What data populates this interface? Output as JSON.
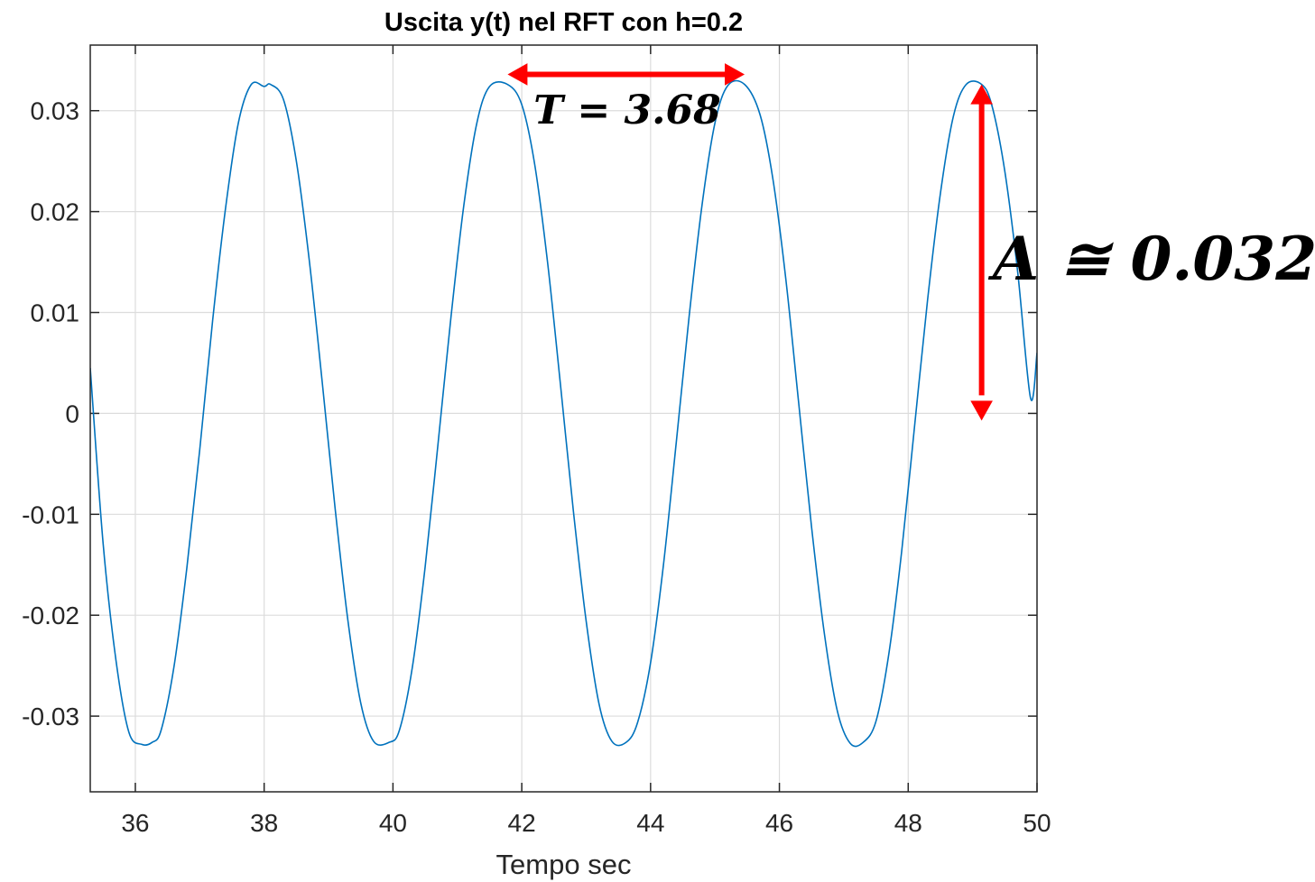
{
  "chart_data": {
    "type": "line",
    "title": "Uscita y(t) nel RFT con h=0.2",
    "xlabel": "Tempo sec",
    "ylabel": "",
    "xlim": [
      35.3,
      50
    ],
    "ylim": [
      -0.0375,
      0.0365
    ],
    "xticks": [
      36,
      38,
      40,
      42,
      44,
      46,
      48,
      50
    ],
    "xtick_labels": [
      "36",
      "38",
      "40",
      "42",
      "44",
      "46",
      "48",
      "50"
    ],
    "yticks": [
      -0.03,
      -0.02,
      -0.01,
      0,
      0.01,
      0.02,
      0.03
    ],
    "ytick_labels": [
      "-0.03",
      "-0.02",
      "-0.01",
      "0",
      "0.01",
      "0.02",
      "0.03"
    ],
    "grid": true,
    "series": [
      {
        "color": "#0072BD",
        "x": [
          35.3,
          35.5,
          35.7,
          35.9,
          36.1,
          36.26,
          36.4,
          36.6,
          36.8,
          37.0,
          37.2,
          37.4,
          37.6,
          37.8,
          38.0,
          38.1,
          38.3,
          38.5,
          38.7,
          38.9,
          39.1,
          39.3,
          39.5,
          39.7,
          39.94,
          40.1,
          40.3,
          40.5,
          40.7,
          40.9,
          41.1,
          41.3,
          41.5,
          41.78,
          42.0,
          42.2,
          42.4,
          42.6,
          42.8,
          43.0,
          43.2,
          43.4,
          43.62,
          43.8,
          44.0,
          44.2,
          44.4,
          44.6,
          44.8,
          45.0,
          45.2,
          45.46,
          45.7,
          45.9,
          46.1,
          46.3,
          46.5,
          46.7,
          46.9,
          47.1,
          47.3,
          47.5,
          47.7,
          47.9,
          48.1,
          48.3,
          48.5,
          48.7,
          48.9,
          49.14,
          49.3,
          49.5,
          49.7,
          49.9,
          50.0
        ],
        "y": [
          0.0045,
          -0.0129,
          -0.0245,
          -0.0316,
          -0.0328,
          -0.0326,
          -0.0314,
          -0.0251,
          -0.0153,
          -0.0036,
          0.0092,
          0.0203,
          0.0288,
          0.0326,
          0.0324,
          0.0326,
          0.0311,
          0.025,
          0.0152,
          0.0032,
          -0.0093,
          -0.0205,
          -0.0287,
          -0.0325,
          -0.0326,
          -0.0314,
          -0.0252,
          -0.0152,
          -0.003,
          0.0095,
          0.0206,
          0.0287,
          0.0324,
          0.0326,
          0.0306,
          0.0247,
          0.015,
          0.0029,
          -0.0096,
          -0.0206,
          -0.0288,
          -0.0325,
          -0.0326,
          -0.0306,
          -0.0247,
          -0.015,
          -0.0028,
          0.0097,
          0.0207,
          0.0288,
          0.0325,
          0.0326,
          0.0296,
          0.0232,
          0.0133,
          0.001,
          -0.0113,
          -0.0219,
          -0.0295,
          -0.0327,
          -0.0326,
          -0.0305,
          -0.0238,
          -0.0136,
          -0.0012,
          0.0112,
          0.0218,
          0.0294,
          0.0326,
          0.0326,
          0.0305,
          0.024,
          0.014,
          0.0015,
          0.006
        ]
      }
    ],
    "annotations": [
      {
        "text": "T = 3.68",
        "arrow": "horizontal double-headed",
        "color": "#FF0000",
        "from_x": 41.78,
        "to_x": 45.46,
        "at_y": 0.0336
      },
      {
        "text": "A ≅ 0.032",
        "arrow": "vertical double-headed",
        "color": "#FF0000",
        "at_x": 49.14,
        "from_y": 0.0,
        "to_y": 0.0326
      }
    ]
  }
}
